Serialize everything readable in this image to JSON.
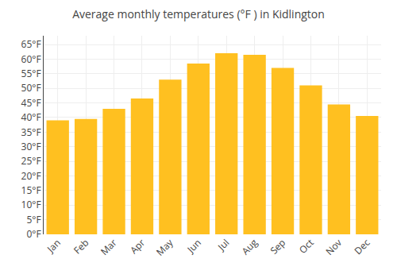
{
  "chart_data": {
    "type": "bar",
    "title": "Average monthly temperatures (°F ) in Kidlington",
    "categories": [
      "Jan",
      "Feb",
      "Mar",
      "Apr",
      "May",
      "Jun",
      "Jul",
      "Aug",
      "Sep",
      "Oct",
      "Nov",
      "Dec"
    ],
    "values": [
      39,
      39.5,
      43,
      46.5,
      53,
      58.5,
      62,
      61.5,
      57,
      51,
      44.5,
      40.5
    ],
    "color": "#FFC020",
    "ylim": [
      0,
      68
    ],
    "yticks": [
      {
        "value": 0,
        "label": "0°F"
      },
      {
        "value": 5,
        "label": "5°F"
      },
      {
        "value": 10,
        "label": "10°F"
      },
      {
        "value": 15,
        "label": "15°F"
      },
      {
        "value": 20,
        "label": "20°F"
      },
      {
        "value": 25,
        "label": "25°F"
      },
      {
        "value": 30,
        "label": "30°F"
      },
      {
        "value": 35,
        "label": "35°F"
      },
      {
        "value": 40,
        "label": "40°F"
      },
      {
        "value": 45,
        "label": "45°F"
      },
      {
        "value": 50,
        "label": "50°F"
      },
      {
        "value": 55,
        "label": "55°F"
      },
      {
        "value": 60,
        "label": "60°F"
      },
      {
        "value": 65,
        "label": "65°F"
      }
    ],
    "grid": true
  }
}
